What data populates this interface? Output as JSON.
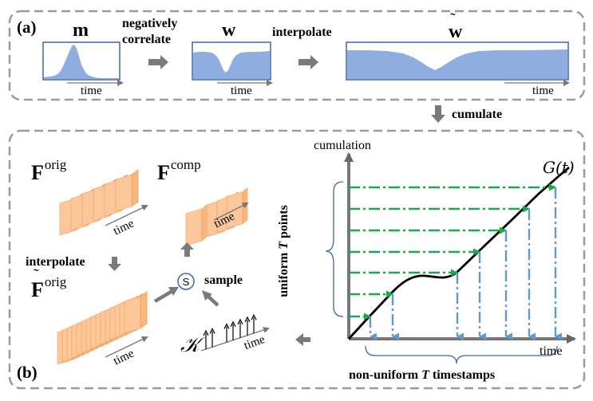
{
  "panel_a": {
    "label": "(a)",
    "var_m": "m",
    "op_negcorr_1": "negatively",
    "op_negcorr_2": "correlate",
    "var_w": "w",
    "op_interpolate": "interpolate",
    "var_w_tilde": "w",
    "time_label": "time"
  },
  "between": {
    "op_cumulate": "cumulate"
  },
  "panel_b": {
    "label": "(b)",
    "F": "F",
    "sup_orig": "orig",
    "sup_comp": "comp",
    "time_label": "time",
    "op_interpolate": "interpolate",
    "op_sample": "sample",
    "sample_symbol": "S",
    "set_symbol": "𝒦",
    "plot": {
      "y_axis_label": "cumulation",
      "x_axis_label": "time",
      "curve_label": "G(t)",
      "left_brace_label_pre": "uniform ",
      "left_brace_label_T": "T",
      "left_brace_label_post": " points",
      "bottom_brace_label_pre": "non-uniform ",
      "bottom_brace_label_T": "T",
      "bottom_brace_label_post": " timestamps"
    }
  },
  "colors": {
    "signal_fill": "#8fadde",
    "signal_border": "#3c64b4",
    "frame_fill": "#fbb67c",
    "dash_green": "#1aa94a",
    "dash_blue": "#5b9bd5",
    "box_gray": "#9a9a9a",
    "arrow_gray": "#777777",
    "circle_blue": "#3c64b4"
  }
}
